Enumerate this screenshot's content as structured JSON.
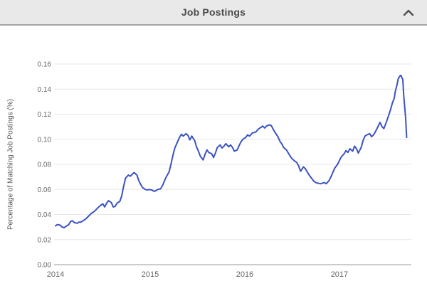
{
  "header": {
    "title": "Job Postings",
    "collapse_icon": "chevron-up"
  },
  "colors": {
    "header_bg": "#e9e9e9",
    "header_border": "#a3a3a3",
    "title_text": "#4a4a4a",
    "icon": "#4f4f4f",
    "tick_text": "#666666",
    "axis_title_text": "#555555",
    "gridline": "#e8e8e8",
    "axis_line": "#999999",
    "line": "#3b52c4"
  },
  "chart_data": {
    "type": "line",
    "title": "Job Postings",
    "xlabel": "",
    "ylabel": "Percentage of Matching Job Postings (%)",
    "xlim": [
      2014,
      2017.76
    ],
    "ylim": [
      0,
      0.16
    ],
    "ytick_step": 0.02,
    "ytick_labels": [
      "0.00",
      "0.02",
      "0.04",
      "0.06",
      "0.08",
      "0.10",
      "0.12",
      "0.14",
      "0.16"
    ],
    "xticks": [
      2014,
      2015,
      2016,
      2017
    ],
    "grid": true,
    "legend": "none",
    "series": [
      {
        "name": "Percentage of Matching Job Postings (%)",
        "color": "#3b52c4",
        "data": [
          [
            2014.0,
            0.031
          ],
          [
            2014.02,
            0.032
          ],
          [
            2014.05,
            0.0315
          ],
          [
            2014.07,
            0.03
          ],
          [
            2014.09,
            0.0295
          ],
          [
            2014.11,
            0.0305
          ],
          [
            2014.14,
            0.032
          ],
          [
            2014.16,
            0.0345
          ],
          [
            2014.18,
            0.035
          ],
          [
            2014.2,
            0.0335
          ],
          [
            2014.23,
            0.033
          ],
          [
            2014.25,
            0.034
          ],
          [
            2014.27,
            0.034
          ],
          [
            2014.29,
            0.035
          ],
          [
            2014.32,
            0.0365
          ],
          [
            2014.34,
            0.038
          ],
          [
            2014.36,
            0.0395
          ],
          [
            2014.38,
            0.041
          ],
          [
            2014.41,
            0.0425
          ],
          [
            2014.43,
            0.044
          ],
          [
            2014.45,
            0.0455
          ],
          [
            2014.47,
            0.047
          ],
          [
            2014.5,
            0.0485
          ],
          [
            2014.52,
            0.046
          ],
          [
            2014.54,
            0.049
          ],
          [
            2014.56,
            0.051
          ],
          [
            2014.59,
            0.0495
          ],
          [
            2014.61,
            0.046
          ],
          [
            2014.63,
            0.0465
          ],
          [
            2014.65,
            0.049
          ],
          [
            2014.68,
            0.0505
          ],
          [
            2014.7,
            0.055
          ],
          [
            2014.72,
            0.0625
          ],
          [
            2014.74,
            0.069
          ],
          [
            2014.77,
            0.0715
          ],
          [
            2014.79,
            0.0705
          ],
          [
            2014.81,
            0.072
          ],
          [
            2014.83,
            0.0735
          ],
          [
            2014.86,
            0.0715
          ],
          [
            2014.88,
            0.067
          ],
          [
            2014.9,
            0.064
          ],
          [
            2014.92,
            0.0615
          ],
          [
            2014.95,
            0.06
          ],
          [
            2014.97,
            0.0595
          ],
          [
            2014.99,
            0.06
          ],
          [
            2015.02,
            0.0595
          ],
          [
            2015.04,
            0.0585
          ],
          [
            2015.06,
            0.059
          ],
          [
            2015.08,
            0.06
          ],
          [
            2015.11,
            0.0605
          ],
          [
            2015.13,
            0.063
          ],
          [
            2015.15,
            0.0665
          ],
          [
            2015.17,
            0.07
          ],
          [
            2015.2,
            0.074
          ],
          [
            2015.22,
            0.08
          ],
          [
            2015.24,
            0.087
          ],
          [
            2015.26,
            0.093
          ],
          [
            2015.29,
            0.098
          ],
          [
            2015.31,
            0.1015
          ],
          [
            2015.33,
            0.104
          ],
          [
            2015.35,
            0.1025
          ],
          [
            2015.38,
            0.1045
          ],
          [
            2015.4,
            0.103
          ],
          [
            2015.42,
            0.0995
          ],
          [
            2015.44,
            0.1025
          ],
          [
            2015.47,
            0.099
          ],
          [
            2015.49,
            0.094
          ],
          [
            2015.51,
            0.0905
          ],
          [
            2015.53,
            0.0865
          ],
          [
            2015.56,
            0.0835
          ],
          [
            2015.58,
            0.088
          ],
          [
            2015.6,
            0.0915
          ],
          [
            2015.62,
            0.0895
          ],
          [
            2015.65,
            0.0885
          ],
          [
            2015.67,
            0.0855
          ],
          [
            2015.69,
            0.089
          ],
          [
            2015.71,
            0.0935
          ],
          [
            2015.74,
            0.0955
          ],
          [
            2015.76,
            0.093
          ],
          [
            2015.78,
            0.0945
          ],
          [
            2015.8,
            0.0965
          ],
          [
            2015.83,
            0.094
          ],
          [
            2015.85,
            0.0955
          ],
          [
            2015.87,
            0.0935
          ],
          [
            2015.89,
            0.0905
          ],
          [
            2015.92,
            0.0915
          ],
          [
            2015.94,
            0.095
          ],
          [
            2015.96,
            0.098
          ],
          [
            2015.98,
            0.1
          ],
          [
            2016.01,
            0.1015
          ],
          [
            2016.03,
            0.1035
          ],
          [
            2016.05,
            0.1025
          ],
          [
            2016.08,
            0.105
          ],
          [
            2016.1,
            0.1055
          ],
          [
            2016.12,
            0.106
          ],
          [
            2016.14,
            0.108
          ],
          [
            2016.17,
            0.1095
          ],
          [
            2016.19,
            0.1105
          ],
          [
            2016.21,
            0.109
          ],
          [
            2016.23,
            0.1105
          ],
          [
            2016.26,
            0.1115
          ],
          [
            2016.28,
            0.111
          ],
          [
            2016.3,
            0.108
          ],
          [
            2016.32,
            0.1055
          ],
          [
            2016.35,
            0.102
          ],
          [
            2016.37,
            0.0985
          ],
          [
            2016.39,
            0.0965
          ],
          [
            2016.41,
            0.0935
          ],
          [
            2016.44,
            0.0915
          ],
          [
            2016.46,
            0.089
          ],
          [
            2016.48,
            0.0865
          ],
          [
            2016.5,
            0.0845
          ],
          [
            2016.53,
            0.0825
          ],
          [
            2016.55,
            0.0815
          ],
          [
            2016.57,
            0.0785
          ],
          [
            2016.59,
            0.0745
          ],
          [
            2016.62,
            0.078
          ],
          [
            2016.64,
            0.0765
          ],
          [
            2016.66,
            0.074
          ],
          [
            2016.68,
            0.0715
          ],
          [
            2016.71,
            0.0685
          ],
          [
            2016.73,
            0.0665
          ],
          [
            2016.75,
            0.0655
          ],
          [
            2016.77,
            0.065
          ],
          [
            2016.8,
            0.0645
          ],
          [
            2016.82,
            0.065
          ],
          [
            2016.84,
            0.0655
          ],
          [
            2016.86,
            0.0645
          ],
          [
            2016.89,
            0.067
          ],
          [
            2016.91,
            0.07
          ],
          [
            2016.93,
            0.0735
          ],
          [
            2016.95,
            0.077
          ],
          [
            2016.98,
            0.08
          ],
          [
            2017.0,
            0.083
          ],
          [
            2017.02,
            0.086
          ],
          [
            2017.05,
            0.0885
          ],
          [
            2017.07,
            0.091
          ],
          [
            2017.09,
            0.0895
          ],
          [
            2017.11,
            0.0925
          ],
          [
            2017.14,
            0.0905
          ],
          [
            2017.16,
            0.0945
          ],
          [
            2017.18,
            0.0925
          ],
          [
            2017.2,
            0.089
          ],
          [
            2017.23,
            0.0935
          ],
          [
            2017.25,
            0.099
          ],
          [
            2017.27,
            0.1025
          ],
          [
            2017.29,
            0.1035
          ],
          [
            2017.32,
            0.1045
          ],
          [
            2017.34,
            0.102
          ],
          [
            2017.36,
            0.1035
          ],
          [
            2017.38,
            0.106
          ],
          [
            2017.41,
            0.1105
          ],
          [
            2017.43,
            0.1135
          ],
          [
            2017.45,
            0.11
          ],
          [
            2017.47,
            0.1085
          ],
          [
            2017.5,
            0.1145
          ],
          [
            2017.52,
            0.119
          ],
          [
            2017.54,
            0.1235
          ],
          [
            2017.56,
            0.129
          ],
          [
            2017.58,
            0.133
          ],
          [
            2017.59,
            0.138
          ],
          [
            2017.61,
            0.144
          ],
          [
            2017.62,
            0.148
          ],
          [
            2017.64,
            0.1505
          ],
          [
            2017.65,
            0.151
          ],
          [
            2017.67,
            0.1475
          ],
          [
            2017.68,
            0.134
          ],
          [
            2017.7,
            0.117
          ],
          [
            2017.71,
            0.1015
          ]
        ]
      }
    ]
  }
}
